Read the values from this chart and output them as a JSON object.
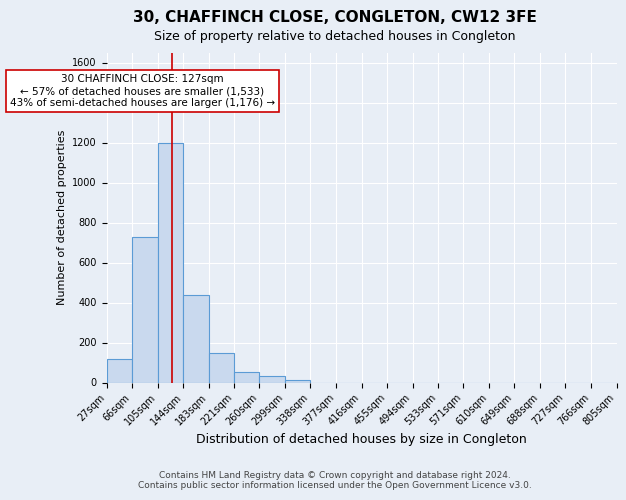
{
  "title": "30, CHAFFINCH CLOSE, CONGLETON, CW12 3FE",
  "subtitle": "Size of property relative to detached houses in Congleton",
  "xlabel": "Distribution of detached houses by size in Congleton",
  "ylabel": "Number of detached properties",
  "bin_labels": [
    "27sqm",
    "66sqm",
    "105sqm",
    "144sqm",
    "183sqm",
    "221sqm",
    "260sqm",
    "299sqm",
    "338sqm",
    "377sqm",
    "416sqm",
    "455sqm",
    "494sqm",
    "533sqm",
    "571sqm",
    "610sqm",
    "649sqm",
    "688sqm",
    "727sqm",
    "766sqm",
    "805sqm"
  ],
  "bar_heights": [
    120,
    730,
    1200,
    440,
    150,
    55,
    32,
    15,
    0,
    0,
    0,
    0,
    0,
    0,
    0,
    0,
    0,
    0,
    0,
    0
  ],
  "bin_edges": [
    27,
    66,
    105,
    144,
    183,
    221,
    260,
    299,
    338,
    377,
    416,
    455,
    494,
    533,
    571,
    610,
    649,
    688,
    727,
    766,
    805
  ],
  "bar_color": "#c9d9ee",
  "bar_edge_color": "#5b9bd5",
  "vline_x": 127,
  "vline_color": "#cc0000",
  "annotation_text": "30 CHAFFINCH CLOSE: 127sqm\n← 57% of detached houses are smaller (1,533)\n43% of semi-detached houses are larger (1,176) →",
  "annotation_box_color": "#ffffff",
  "annotation_box_edge": "#cc0000",
  "ylim": [
    0,
    1650
  ],
  "yticks": [
    0,
    200,
    400,
    600,
    800,
    1000,
    1200,
    1400,
    1600
  ],
  "background_color": "#e8eef6",
  "axes_background": "#e8eef6",
  "grid_color": "#ffffff",
  "footer_line1": "Contains HM Land Registry data © Crown copyright and database right 2024.",
  "footer_line2": "Contains public sector information licensed under the Open Government Licence v3.0.",
  "title_fontsize": 11,
  "subtitle_fontsize": 9,
  "xlabel_fontsize": 9,
  "ylabel_fontsize": 8,
  "tick_fontsize": 7,
  "annotation_fontsize": 7.5,
  "footer_fontsize": 6.5
}
